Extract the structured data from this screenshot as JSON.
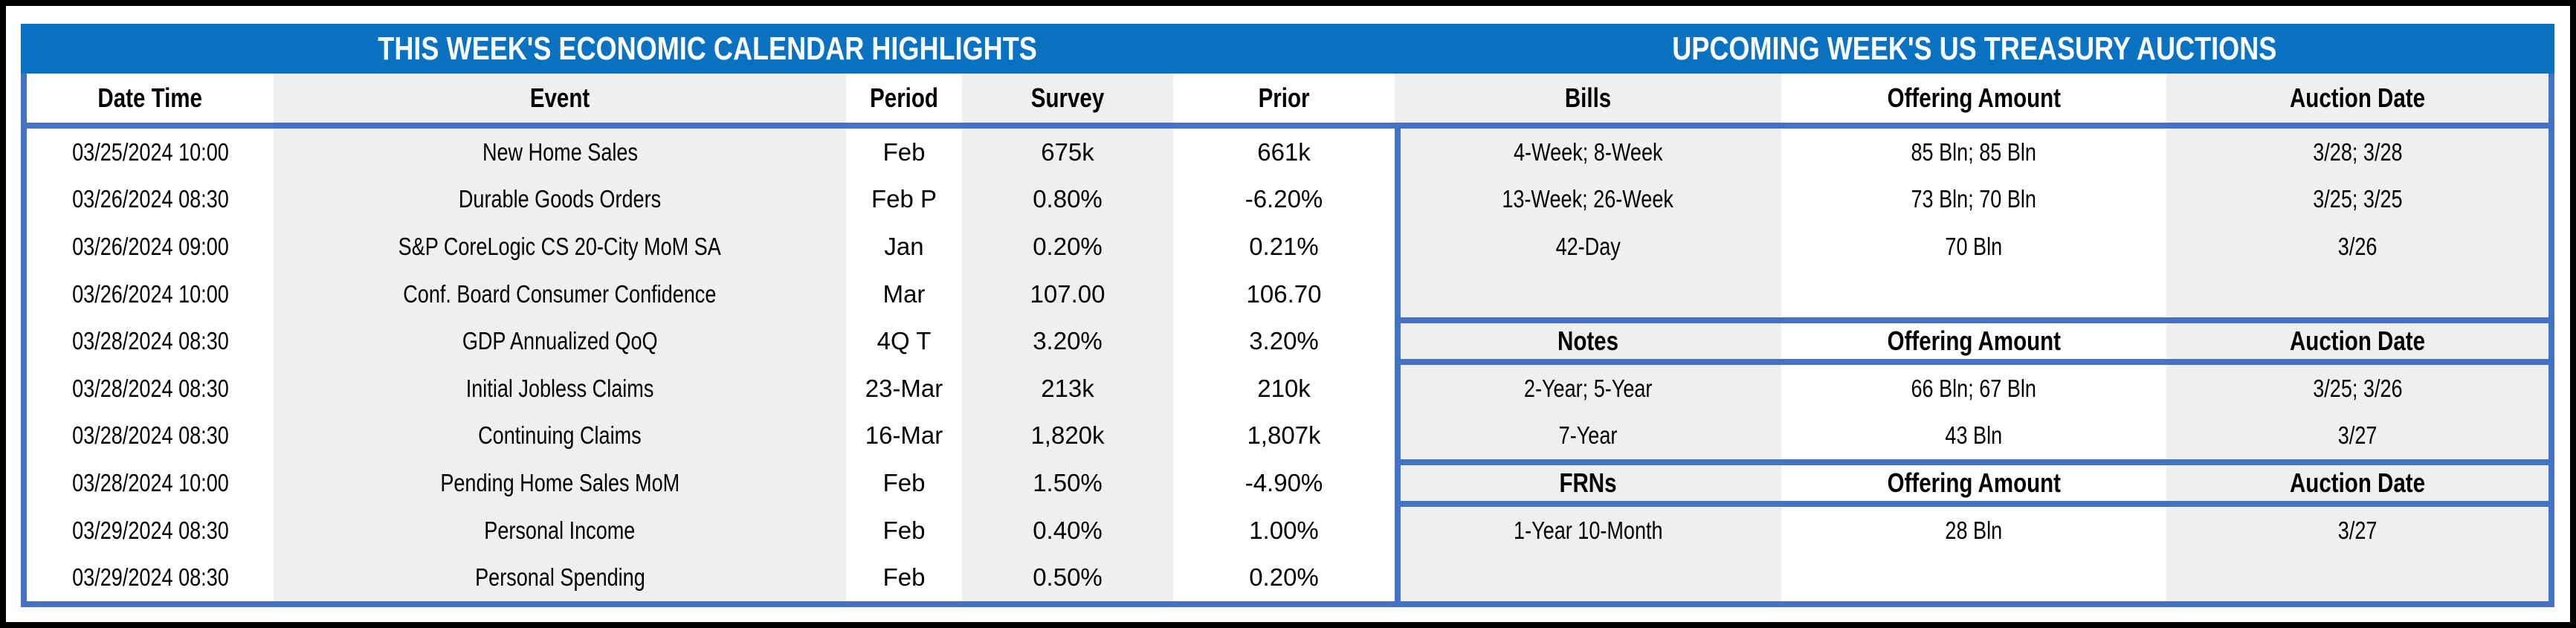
{
  "colors": {
    "title_bar_blue": "#0B72C2",
    "border_blue": "#4472C4",
    "stripe_gray": "#EFEFEF",
    "outer_border_black": "#000000",
    "title_text": "#ffffff",
    "body_text": "#000000"
  },
  "titles": {
    "calendar": "THIS WEEK'S ECONOMIC CALENDAR HIGHLIGHTS",
    "auctions": "UPCOMING WEEK'S US TREASURY AUCTIONS"
  },
  "calendar": {
    "headers": {
      "date_time": "Date Time",
      "event": "Event",
      "period": "Period",
      "survey": "Survey",
      "prior": "Prior"
    },
    "rows": [
      {
        "date_time": "03/25/2024 10:00",
        "event": "New Home Sales",
        "period": "Feb",
        "survey": "675k",
        "prior": "661k"
      },
      {
        "date_time": "03/26/2024 08:30",
        "event": "Durable Goods Orders",
        "period": "Feb P",
        "survey": "0.80%",
        "prior": "-6.20%"
      },
      {
        "date_time": "03/26/2024 09:00",
        "event": "S&P CoreLogic CS 20-City MoM SA",
        "period": "Jan",
        "survey": "0.20%",
        "prior": "0.21%"
      },
      {
        "date_time": "03/26/2024 10:00",
        "event": "Conf. Board Consumer Confidence",
        "period": "Mar",
        "survey": "107.00",
        "prior": "106.70"
      },
      {
        "date_time": "03/28/2024 08:30",
        "event": "GDP Annualized QoQ",
        "period": "4Q T",
        "survey": "3.20%",
        "prior": "3.20%"
      },
      {
        "date_time": "03/28/2024 08:30",
        "event": "Initial Jobless Claims",
        "period": "23-Mar",
        "survey": "213k",
        "prior": "210k"
      },
      {
        "date_time": "03/28/2024 08:30",
        "event": "Continuing Claims",
        "period": "16-Mar",
        "survey": "1,820k",
        "prior": "1,807k"
      },
      {
        "date_time": "03/28/2024 10:00",
        "event": "Pending Home Sales MoM",
        "period": "Feb",
        "survey": "1.50%",
        "prior": "-4.90%"
      },
      {
        "date_time": "03/29/2024 08:30",
        "event": "Personal Income",
        "period": "Feb",
        "survey": "0.40%",
        "prior": "1.00%"
      },
      {
        "date_time": "03/29/2024 08:30",
        "event": "Personal Spending",
        "period": "Feb",
        "survey": "0.50%",
        "prior": "0.20%"
      }
    ]
  },
  "auctions": {
    "bills_header": {
      "type": "Bills",
      "amount": "Offering Amount",
      "date": "Auction Date"
    },
    "bills_rows": [
      {
        "type": "4-Week; 8-Week",
        "amount": "85 Bln; 85 Bln",
        "date": "3/28; 3/28"
      },
      {
        "type": "13-Week; 26-Week",
        "amount": "73 Bln; 70 Bln",
        "date": "3/25; 3/25"
      },
      {
        "type": "42-Day",
        "amount": "70 Bln",
        "date": "3/26"
      }
    ],
    "notes_header": {
      "type": "Notes",
      "amount": "Offering Amount",
      "date": "Auction Date"
    },
    "notes_rows": [
      {
        "type": "2-Year; 5-Year",
        "amount": "66 Bln; 67 Bln",
        "date": "3/25; 3/26"
      },
      {
        "type": "7-Year",
        "amount": "43 Bln",
        "date": "3/27"
      }
    ],
    "frns_header": {
      "type": "FRNs",
      "amount": "Offering Amount",
      "date": "Auction Date"
    },
    "frns_rows": [
      {
        "type": "1-Year 10-Month",
        "amount": "28 Bln",
        "date": "3/27"
      }
    ]
  }
}
